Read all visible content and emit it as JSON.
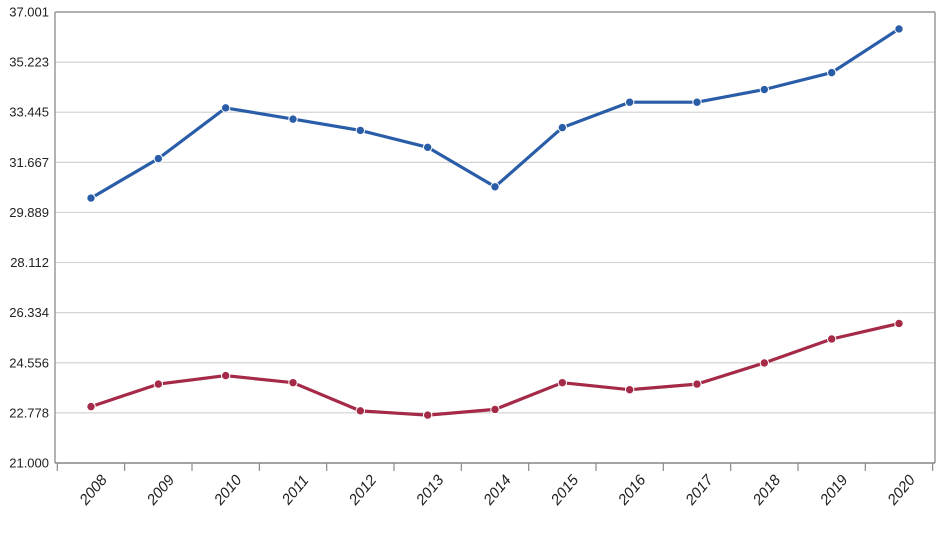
{
  "chart_data": {
    "type": "line",
    "categories": [
      "2008",
      "2009",
      "2010",
      "2011",
      "2012",
      "2013",
      "2014",
      "2015",
      "2016",
      "2017",
      "2018",
      "2019",
      "2020"
    ],
    "series": [
      {
        "color": "#2a5da8",
        "values": [
          30.4,
          31.8,
          33.6,
          33.2,
          32.8,
          32.2,
          30.8,
          32.9,
          33.8,
          33.8,
          34.25,
          34.85,
          36.4
        ]
      },
      {
        "color": "#a52a48",
        "values": [
          23.0,
          23.8,
          24.1,
          23.85,
          22.85,
          22.7,
          22.9,
          23.85,
          23.6,
          23.8,
          24.55,
          25.4,
          25.95
        ]
      }
    ],
    "yticks": [
      "21.000",
      "22.778",
      "24.556",
      "26.334",
      "28.112",
      "29.889",
      "31.667",
      "33.445",
      "35.223",
      "37.001"
    ],
    "ylim": [
      21.0,
      37.001
    ],
    "grid": true
  }
}
